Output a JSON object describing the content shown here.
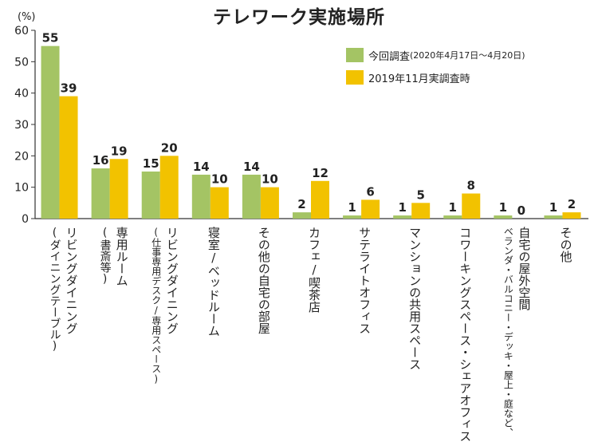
{
  "chart_data": {
    "type": "bar",
    "title": "テレワーク実施場所",
    "ylabel": "(%)",
    "ylim": [
      0,
      60
    ],
    "yticks": [
      0,
      10,
      20,
      30,
      40,
      50,
      60
    ],
    "grid": false,
    "legend_position": "top-right",
    "categories": [
      {
        "main": "リビングダイニング",
        "sub": "(ダイニングテーブル)"
      },
      {
        "main": "専用ルーム",
        "sub": "(書斎等)"
      },
      {
        "main": "リビングダイニング",
        "sub": "(仕事専用デスク/専用スペース)"
      },
      {
        "main": "寝室/ベッドルーム",
        "sub": ""
      },
      {
        "main": "その他の自宅の部屋",
        "sub": ""
      },
      {
        "main": "カフェ/喫茶店",
        "sub": ""
      },
      {
        "main": "サテライトオフィス",
        "sub": ""
      },
      {
        "main": "マンションの共用スペース",
        "sub": ""
      },
      {
        "main": "コワーキングスペース・シェアオフィス",
        "sub": ""
      },
      {
        "main": "自宅の屋外空間",
        "sub": "ベランダ・バルコニー・デッキ・屋上・庭など、"
      },
      {
        "main": "その他",
        "sub": ""
      }
    ],
    "series": [
      {
        "name": "今回調査",
        "name_note": "(2020年4月17日〜4月20日)",
        "color": "#a4c464",
        "values": [
          55,
          16,
          15,
          14,
          14,
          2,
          1,
          1,
          1,
          1,
          1
        ]
      },
      {
        "name": "2019年11月実調査時",
        "name_note": "",
        "color": "#f2c200",
        "values": [
          39,
          19,
          20,
          10,
          10,
          12,
          6,
          5,
          8,
          0,
          2
        ]
      }
    ]
  }
}
